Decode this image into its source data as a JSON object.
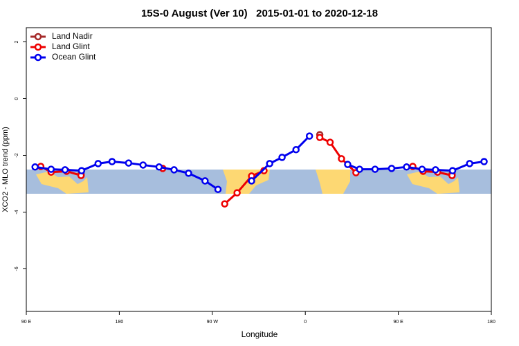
{
  "chart_data": {
    "type": "line",
    "title": "15S-0 August (Ver 10)   2015-01-01 to 2020-12-18",
    "x_label": "Longitude",
    "y_label": "XCO2 - MLO trend (ppm)",
    "xlim": [
      90,
      540
    ],
    "xticks": [
      {
        "value": 90,
        "label": "90 E"
      },
      180,
      {
        "value": 270,
        "label": "90 W"
      },
      0,
      {
        "value": 450,
        "label": "90 E"
      },
      180
    ],
    "ylim": [
      -7.5,
      2.5
    ],
    "yticks": [
      2,
      0,
      -2,
      -4,
      -6
    ],
    "legend": "top-left",
    "series": [
      {
        "name": "Land Nadir",
        "color": "#a52a2a",
        "x": [
          143,
          260,
          374,
          440,
          502
        ],
        "values": [
          -2.66,
          null,
          -1.27,
          null,
          -2.66
        ]
      },
      {
        "name": "Land Glint",
        "color": "#ee0000",
        "x": [
          104,
          114,
          129,
          143,
          182,
          222,
          252,
          282,
          294,
          308,
          320,
          347,
          374,
          384,
          395,
          409,
          437,
          464,
          474,
          488,
          502
        ],
        "values": [
          -2.39,
          -2.59,
          -2.56,
          -2.71,
          null,
          -2.46,
          null,
          -3.71,
          -3.32,
          -2.73,
          -2.54,
          null,
          -1.37,
          -1.54,
          -2.12,
          -2.61,
          null,
          -2.39,
          -2.56,
          -2.59,
          -2.71
        ]
      },
      {
        "name": "Ocean Glint",
        "color": "#0000ee",
        "x": [
          98.5,
          114,
          127.5,
          143.5,
          159.5,
          173,
          189,
          203,
          218.5,
          233,
          247,
          263,
          275.5,
          292,
          308,
          325.5,
          337.5,
          351,
          364,
          382,
          401,
          412.5,
          427.5,
          443.5,
          458,
          473,
          486,
          502.5,
          519,
          533
        ],
        "values": [
          -2.41,
          -2.49,
          -2.51,
          -2.54,
          -2.29,
          -2.22,
          -2.27,
          -2.34,
          -2.41,
          -2.51,
          -2.63,
          -2.9,
          -3.2,
          null,
          -2.9,
          -2.29,
          -2.07,
          -1.8,
          -1.32,
          null,
          -2.32,
          -2.49,
          -2.49,
          -2.46,
          -2.41,
          -2.49,
          -2.51,
          -2.54,
          -2.29,
          -2.22
        ]
      }
    ]
  }
}
